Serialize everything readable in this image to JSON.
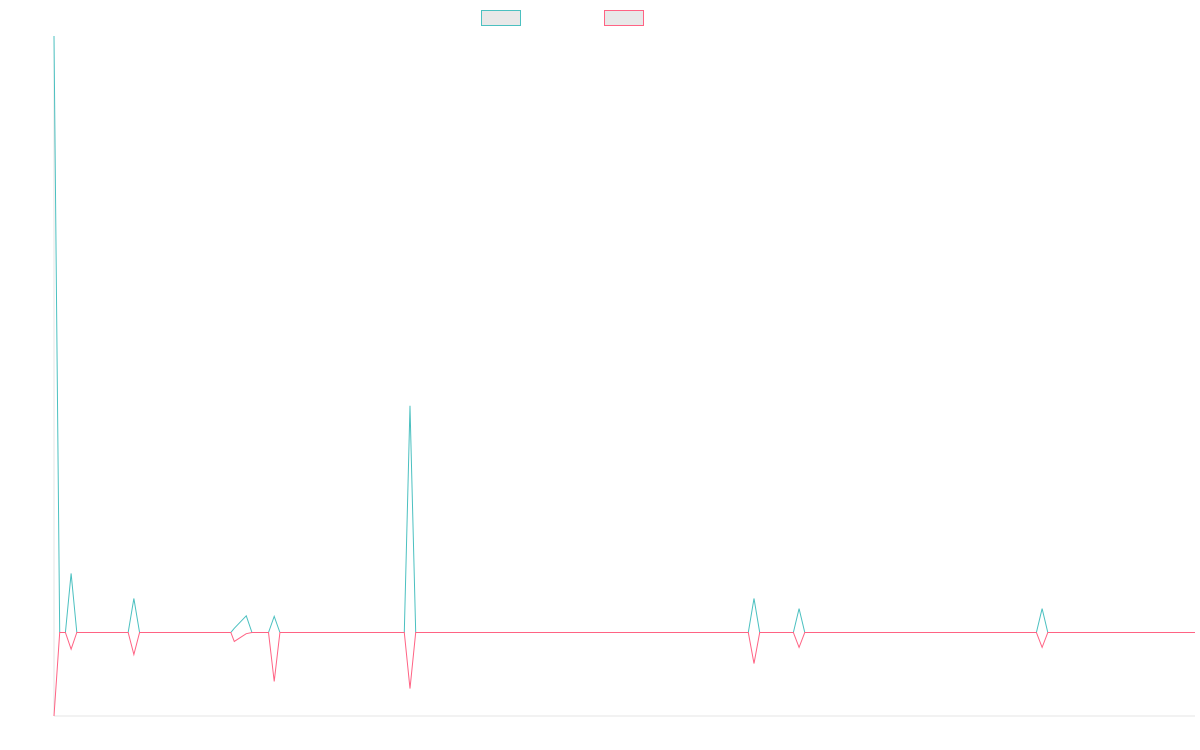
{
  "chart_data": {
    "type": "line",
    "x": [
      0,
      1,
      2,
      3,
      4,
      13,
      14,
      15,
      31,
      31.6,
      33.7,
      34.7,
      37.6,
      38.6,
      39.6,
      61.4,
      62.4,
      63.4,
      121.7,
      122.7,
      123.7,
      129.6,
      130.6,
      131.6,
      172.2,
      173.2,
      174.2,
      200
    ],
    "series": [
      {
        "color": "#4bc0c0",
        "values": [
          100,
          0,
          0,
          9.9,
          0,
          0,
          5.7,
          0,
          0,
          0.7,
          2.8,
          0,
          0,
          2.7,
          0,
          0,
          38,
          0,
          0,
          5.7,
          0,
          0,
          4,
          0,
          0,
          4,
          0,
          0
        ]
      },
      {
        "color": "#ff6384",
        "values": [
          -14,
          0,
          0,
          -2.8,
          0,
          0,
          -3.7,
          0,
          0,
          -1.5,
          -0.2,
          0,
          0,
          -8.2,
          0,
          0,
          -9.4,
          0,
          0,
          -5.2,
          0,
          0,
          -2.5,
          0,
          0,
          -2.5,
          0,
          0
        ]
      }
    ],
    "xlim": [
      0,
      200
    ],
    "ylim": [
      -14,
      100
    ]
  }
}
